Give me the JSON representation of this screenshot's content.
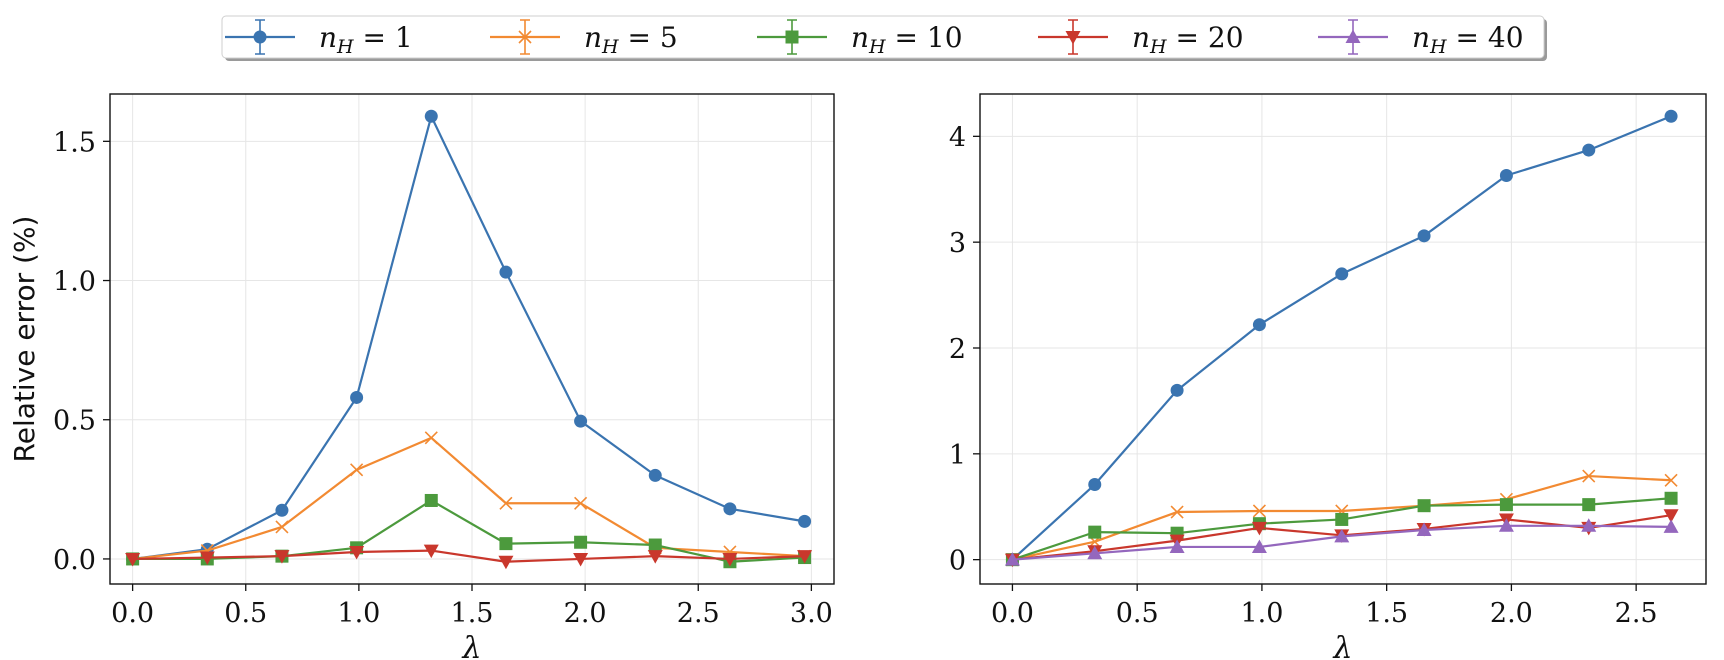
{
  "legend": {
    "entries": [
      {
        "label": "n_H = 1",
        "base": "n",
        "sub": "H",
        "rest": " = 1",
        "color": "#3a74b0",
        "marker": "circle"
      },
      {
        "label": "n_H = 5",
        "base": "n",
        "sub": "H",
        "rest": " = 5",
        "color": "#f28a32",
        "marker": "x"
      },
      {
        "label": "n_H = 10",
        "base": "n",
        "sub": "H",
        "rest": " = 10",
        "color": "#4c9a3d",
        "marker": "square"
      },
      {
        "label": "n_H = 20",
        "base": "n",
        "sub": "H",
        "rest": " = 20",
        "color": "#c9372c",
        "marker": "triangle-down"
      },
      {
        "label": "n_H = 40",
        "base": "n",
        "sub": "H",
        "rest": " = 40",
        "color": "#9467bd",
        "marker": "triangle-up"
      }
    ]
  },
  "chart_data": [
    {
      "type": "line",
      "title": "",
      "xlabel": "λ",
      "ylabel": "Relative error (%)",
      "xlim": [
        -0.1,
        3.1
      ],
      "ylim": [
        -0.09,
        1.67
      ],
      "xticks": [
        0.0,
        0.5,
        1.0,
        1.5,
        2.0,
        2.5,
        3.0
      ],
      "xtick_labels": [
        "0.0",
        "0.5",
        "1.0",
        "1.5",
        "2.0",
        "2.5",
        "3.0"
      ],
      "yticks": [
        0.0,
        0.5,
        1.0,
        1.5
      ],
      "ytick_labels": [
        "0.0",
        "0.5",
        "1.0",
        "1.5"
      ],
      "grid": true,
      "x": [
        0.0,
        0.33,
        0.66,
        0.99,
        1.32,
        1.65,
        1.98,
        2.31,
        2.64,
        2.97
      ],
      "series": [
        {
          "name": "n_H = 1",
          "values": [
            0.0,
            0.035,
            0.175,
            0.58,
            1.59,
            1.03,
            0.495,
            0.3,
            0.18,
            0.135
          ]
        },
        {
          "name": "n_H = 5",
          "values": [
            0.0,
            0.03,
            0.115,
            0.32,
            0.435,
            0.2,
            0.2,
            0.04,
            0.025,
            0.01
          ]
        },
        {
          "name": "n_H = 10",
          "values": [
            0.0,
            0.0,
            0.01,
            0.04,
            0.21,
            0.055,
            0.06,
            0.05,
            -0.01,
            0.005
          ]
        },
        {
          "name": "n_H = 20",
          "values": [
            0.0,
            0.005,
            0.01,
            0.025,
            0.03,
            -0.01,
            0.0,
            0.01,
            0.0,
            0.01
          ]
        }
      ]
    },
    {
      "type": "line",
      "title": "",
      "xlabel": "λ",
      "ylabel": "",
      "xlim": [
        -0.13,
        2.78
      ],
      "ylim": [
        -0.23,
        4.4
      ],
      "xticks": [
        0.0,
        0.5,
        1.0,
        1.5,
        2.0,
        2.5
      ],
      "xtick_labels": [
        "0.0",
        "0.5",
        "1.0",
        "1.5",
        "2.0",
        "2.5"
      ],
      "yticks": [
        0,
        1,
        2,
        3,
        4
      ],
      "ytick_labels": [
        "0",
        "1",
        "2",
        "3",
        "4"
      ],
      "grid": true,
      "x": [
        0.0,
        0.33,
        0.66,
        0.99,
        1.32,
        1.65,
        1.98,
        2.31,
        2.64
      ],
      "series": [
        {
          "name": "n_H = 1",
          "values": [
            0.0,
            0.71,
            1.6,
            2.22,
            2.7,
            3.06,
            3.63,
            3.87,
            4.19
          ]
        },
        {
          "name": "n_H = 5",
          "values": [
            0.0,
            0.17,
            0.45,
            0.46,
            0.46,
            0.51,
            0.57,
            0.79,
            0.75
          ]
        },
        {
          "name": "n_H = 10",
          "values": [
            0.0,
            0.26,
            0.25,
            0.34,
            0.38,
            0.51,
            0.52,
            0.52,
            0.58
          ]
        },
        {
          "name": "n_H = 20",
          "values": [
            0.0,
            0.08,
            0.18,
            0.3,
            0.23,
            0.29,
            0.38,
            0.3,
            0.42
          ]
        },
        {
          "name": "n_H = 40",
          "values": [
            0.0,
            0.06,
            0.12,
            0.12,
            0.22,
            0.28,
            0.32,
            0.32,
            0.31
          ]
        }
      ]
    }
  ]
}
